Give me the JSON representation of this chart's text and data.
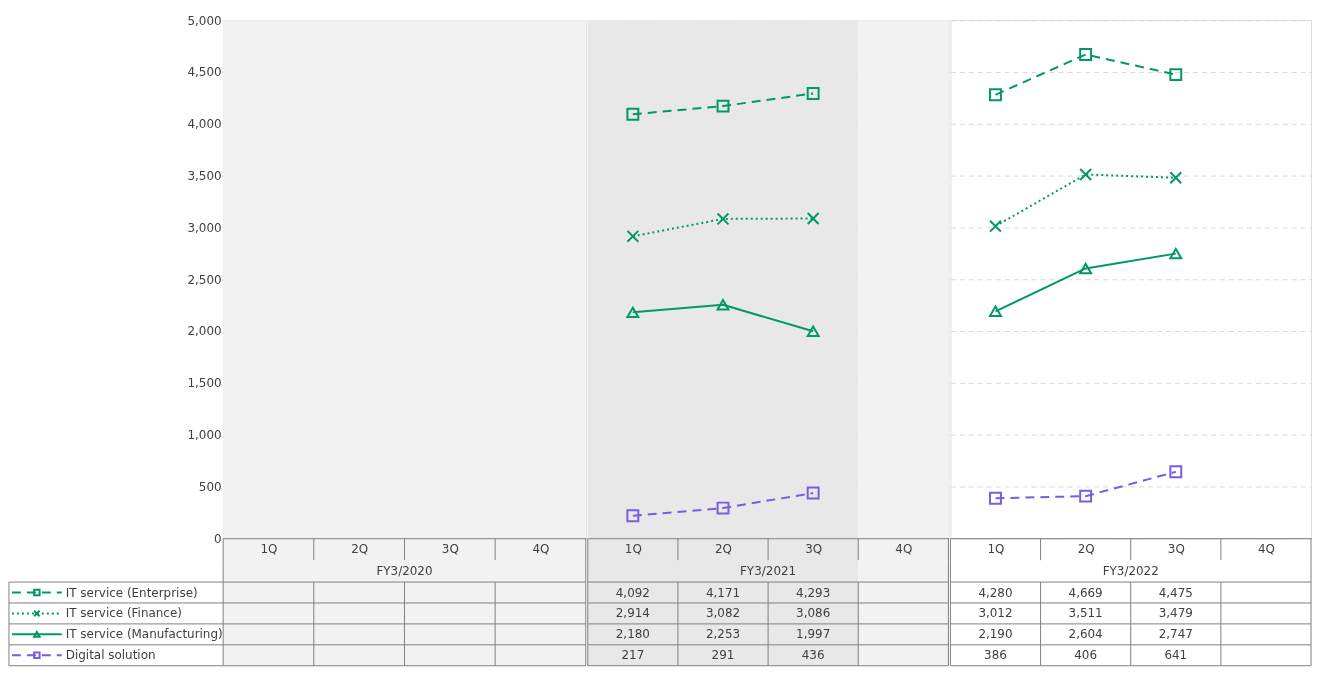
{
  "chart_data": [
    {
      "type": "line",
      "xlabel": "FY3/2020",
      "categories": [
        "1Q",
        "2Q",
        "3Q",
        "4Q"
      ],
      "ylim": [
        0,
        5000
      ],
      "yticks": [
        0,
        {
          "value": 500,
          "label": "500"
        },
        {
          "value": 1000,
          "label": "1,000"
        },
        {
          "value": 1500,
          "label": "1,500"
        },
        {
          "value": 2000,
          "label": "2,000"
        },
        {
          "value": 2500,
          "label": "2,500"
        },
        {
          "value": 3000,
          "label": "3,000"
        },
        {
          "value": 3500,
          "label": "3,500"
        },
        {
          "value": 4000,
          "label": "4,000"
        },
        {
          "value": 4500,
          "label": "4,500"
        },
        {
          "value": 5000,
          "label": "5,000"
        }
      ],
      "grid": "y",
      "legend": "bottom left",
      "bands": [
        {
          "axis": "x",
          "from": "1Q",
          "to": "4Q",
          "color": "#f2f2f2"
        }
      ],
      "series": [
        {
          "name": "IT service (Enterprise)",
          "color": "#009966",
          "marker": "square",
          "line_style": "dashed",
          "values": [
            null,
            null,
            null,
            null
          ],
          "value_labels": [
            null,
            null,
            null,
            null
          ]
        },
        {
          "name": "IT service (Finance)",
          "color": "#009966",
          "marker": "cross",
          "line_style": "dotted",
          "values": [
            null,
            null,
            null,
            null
          ],
          "value_labels": [
            null,
            null,
            null,
            null
          ]
        },
        {
          "name": "IT service (Manufacturing)",
          "color": "#009966",
          "marker": "triangle",
          "line_style": "solid",
          "values": [
            null,
            null,
            null,
            null
          ],
          "value_labels": [
            null,
            null,
            null,
            null
          ]
        },
        {
          "name": "Digital solution",
          "color": "#7b5ce0",
          "marker": "square",
          "line_style": "dashed",
          "values": [
            null,
            null,
            null,
            null
          ],
          "value_labels": [
            null,
            null,
            null,
            null
          ]
        }
      ]
    },
    {
      "type": "line",
      "xlabel": "FY3/2021",
      "categories": [
        "1Q",
        "2Q",
        "3Q",
        "4Q"
      ],
      "ylim": [
        0,
        5000
      ],
      "yticks": [
        0,
        500,
        1000,
        1500,
        2000,
        2500,
        3000,
        3500,
        4000,
        4500,
        5000
      ],
      "tick_labels": "x",
      "grid": "y",
      "bands": [
        {
          "axis": "x",
          "from": "1Q",
          "to": "3Q",
          "color": "#e8e8e8"
        },
        {
          "axis": "x",
          "from": "4Q",
          "to": "4Q",
          "color": "#f2f2f2"
        }
      ],
      "series": [
        {
          "color": "#009966",
          "marker": "square",
          "line_style": "dashed",
          "values": [
            4092,
            4171,
            4293,
            null
          ],
          "value_labels": [
            "4,092",
            "4,171",
            "4,293",
            null
          ]
        },
        {
          "color": "#009966",
          "marker": "cross",
          "line_style": "dotted",
          "values": [
            2914,
            3082,
            3086,
            null
          ],
          "value_labels": [
            "2,914",
            "3,082",
            "3,086",
            null
          ]
        },
        {
          "color": "#009966",
          "marker": "triangle",
          "line_style": "solid",
          "values": [
            2180,
            2253,
            1997,
            null
          ],
          "value_labels": [
            "2,180",
            "2,253",
            "1,997",
            null
          ]
        },
        {
          "color": "#7b5ce0",
          "marker": "square",
          "line_style": "dashed",
          "values": [
            217,
            291,
            436,
            null
          ],
          "value_labels": [
            "217",
            "291",
            "436",
            null
          ]
        }
      ]
    },
    {
      "type": "line",
      "xlabel": "FY3/2022",
      "categories": [
        "1Q",
        "2Q",
        "3Q",
        "4Q"
      ],
      "ylim": [
        0,
        5000
      ],
      "yticks": [
        0,
        500,
        1000,
        1500,
        2000,
        2500,
        3000,
        3500,
        4000,
        4500,
        5000
      ],
      "tick_labels": "x",
      "grid": "y",
      "series": [
        {
          "color": "#009966",
          "marker": "square",
          "line_style": "dashed",
          "values": [
            4280,
            4669,
            4475,
            null
          ],
          "value_labels": [
            "4,280",
            "4,669",
            "4,475",
            null
          ]
        },
        {
          "color": "#009966",
          "marker": "cross",
          "line_style": "dotted",
          "values": [
            3012,
            3511,
            3479,
            null
          ],
          "value_labels": [
            "3,012",
            "3,511",
            "3,479",
            null
          ]
        },
        {
          "color": "#009966",
          "marker": "triangle",
          "line_style": "solid",
          "values": [
            2190,
            2604,
            2747,
            null
          ],
          "value_labels": [
            "2,190",
            "2,604",
            "2,747",
            null
          ]
        },
        {
          "color": "#7b5ce0",
          "marker": "square",
          "line_style": "dashed",
          "values": [
            386,
            406,
            641,
            null
          ],
          "value_labels": [
            "386",
            "406",
            "641",
            null
          ]
        }
      ]
    }
  ]
}
